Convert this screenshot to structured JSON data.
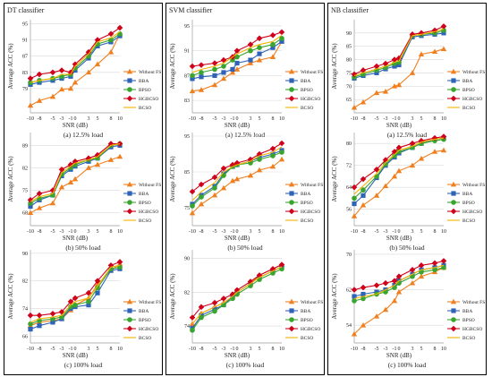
{
  "colors": {
    "border": "#000000",
    "grid": "#d9d9d9",
    "axis": "#9a9a9a"
  },
  "chart_data": {
    "type": "line",
    "x": [
      -10,
      -8,
      -5,
      -3,
      -1,
      0,
      3,
      5,
      8,
      10
    ],
    "x_labels": [
      "-10",
      "-8",
      "-5",
      "-3",
      "-1",
      "0",
      "3",
      "5",
      "8",
      "10"
    ],
    "xlabel": "SNR (dB)",
    "ylabel": "Average ACC (%)",
    "series_styles": [
      {
        "name": "Without FS",
        "color": "#f07f1f",
        "marker": "triangle"
      },
      {
        "name": "BBA",
        "color": "#2e63b7",
        "marker": "square"
      },
      {
        "name": "BPSO",
        "color": "#39a52e",
        "marker": "circle"
      },
      {
        "name": "HGBCSO",
        "color": "#d0021b",
        "marker": "diamond"
      },
      {
        "name": "BCSO",
        "color": "#f5b400",
        "marker": "none"
      }
    ],
    "columns": [
      {
        "title": "DT classifier",
        "panels": [
          {
            "caption": "(a) 12.5% load",
            "ylim": [
              73,
              96
            ],
            "yticks": [
              79,
              83,
              87,
              91,
              95
            ],
            "series": [
              {
                "name": "Without FS",
                "values": [
                  74.8,
                  76.0,
                  77.0,
                  78.8,
                  79.0,
                  80.5,
                  83.0,
                  85.0,
                  88.0,
                  92.5
                ]
              },
              {
                "name": "BBA",
                "values": [
                  80.0,
                  80.5,
                  81.0,
                  81.5,
                  82.0,
                  83.5,
                  86.5,
                  89.5,
                  90.5,
                  92.0
                ]
              },
              {
                "name": "BPSO",
                "values": [
                  80.5,
                  81.0,
                  81.5,
                  82.0,
                  82.5,
                  84.0,
                  87.0,
                  90.0,
                  91.0,
                  92.5
                ]
              },
              {
                "name": "HGBCSO",
                "values": [
                  81.5,
                  82.5,
                  83.0,
                  83.5,
                  83.0,
                  85.0,
                  88.0,
                  91.0,
                  92.5,
                  94.0
                ]
              },
              {
                "name": "BCSO",
                "values": [
                  80.5,
                  81.0,
                  81.5,
                  82.5,
                  82.5,
                  84.5,
                  87.5,
                  90.5,
                  91.5,
                  93.0
                ]
              }
            ]
          },
          {
            "caption": "(b) 50% load",
            "ylim": [
              64,
              93
            ],
            "yticks": [
              68,
              75,
              82,
              89
            ],
            "series": [
              {
                "name": "Without FS",
                "values": [
                  68.0,
                  69.5,
                  71.0,
                  76.0,
                  77.5,
                  78.5,
                  82.0,
                  83.0,
                  84.5,
                  85.5
                ]
              },
              {
                "name": "BBA",
                "values": [
                  70.0,
                  72.0,
                  73.5,
                  79.5,
                  81.5,
                  82.5,
                  84.0,
                  85.0,
                  88.5,
                  89.0
                ]
              },
              {
                "name": "BPSO",
                "values": [
                  71.0,
                  72.5,
                  73.5,
                  80.0,
                  82.0,
                  83.0,
                  84.5,
                  85.0,
                  89.0,
                  89.5
                ]
              },
              {
                "name": "HGBCSO",
                "values": [
                  72.0,
                  74.0,
                  75.0,
                  81.5,
                  83.0,
                  84.0,
                  85.0,
                  86.0,
                  89.5,
                  89.5
                ]
              },
              {
                "name": "BCSO",
                "values": [
                  71.5,
                  73.0,
                  74.0,
                  80.5,
                  82.5,
                  83.5,
                  84.5,
                  85.5,
                  89.0,
                  89.5
                ]
              }
            ]
          },
          {
            "caption": "(c) 100% load",
            "ylim": [
              64,
              91
            ],
            "yticks": [
              66,
              74,
              82,
              90
            ],
            "series": [
              {
                "name": "Without FS",
                "values": [
                  69.0,
                  70.0,
                  70.5,
                  71.0,
                  73.5,
                  75.0,
                  77.0,
                  81.0,
                  85.0,
                  87.0
                ]
              },
              {
                "name": "BBA",
                "values": [
                  68.0,
                  69.0,
                  70.0,
                  71.0,
                  74.0,
                  74.5,
                  75.0,
                  78.5,
                  85.0,
                  85.5
                ]
              },
              {
                "name": "BPSO",
                "values": [
                  69.5,
                  70.5,
                  71.0,
                  71.5,
                  74.5,
                  75.0,
                  76.0,
                  80.0,
                  85.5,
                  86.0
                ]
              },
              {
                "name": "HGBCSO",
                "values": [
                  72.0,
                  72.0,
                  72.5,
                  73.0,
                  76.0,
                  77.0,
                  78.5,
                  82.0,
                  86.5,
                  87.5
                ]
              },
              {
                "name": "BCSO",
                "values": [
                  70.0,
                  71.0,
                  71.5,
                  72.0,
                  75.0,
                  76.0,
                  77.0,
                  80.5,
                  86.0,
                  86.5
                ]
              }
            ]
          }
        ]
      },
      {
        "title": "SVM classifier",
        "panels": [
          {
            "caption": "(a) 12.5% load",
            "ylim": [
              81,
              96
            ],
            "yticks": [
              83,
              87,
              91,
              95
            ],
            "series": [
              {
                "name": "Without FS",
                "values": [
                  84.5,
                  84.7,
                  85.5,
                  86.5,
                  87.5,
                  88.0,
                  89.0,
                  89.5,
                  90.0,
                  92.5
                ]
              },
              {
                "name": "BBA",
                "values": [
                  86.5,
                  86.8,
                  87.0,
                  87.5,
                  88.0,
                  89.0,
                  89.5,
                  90.5,
                  91.5,
                  92.5
                ]
              },
              {
                "name": "BPSO",
                "values": [
                  87.0,
                  87.5,
                  88.0,
                  88.5,
                  89.5,
                  90.0,
                  91.0,
                  91.5,
                  92.0,
                  93.0
                ]
              },
              {
                "name": "HGBCSO",
                "values": [
                  88.5,
                  88.7,
                  89.0,
                  89.5,
                  90.0,
                  91.0,
                  92.0,
                  93.0,
                  93.5,
                  94.0
                ]
              },
              {
                "name": "BCSO",
                "values": [
                  87.5,
                  88.0,
                  88.5,
                  89.0,
                  90.0,
                  90.5,
                  91.5,
                  92.0,
                  92.5,
                  93.5
                ]
              }
            ]
          },
          {
            "caption": "(b) 50% load",
            "ylim": [
              70,
              96
            ],
            "yticks": [
              75,
              85,
              95
            ],
            "series": [
              {
                "name": "Without FS",
                "values": [
                  73.5,
                  76.0,
                  78.5,
                  80.5,
                  82.5,
                  83.0,
                  84.0,
                  85.5,
                  86.5,
                  88.5
                ]
              },
              {
                "name": "BBA",
                "values": [
                  76.0,
                  78.5,
                  81.0,
                  84.5,
                  86.5,
                  87.0,
                  88.0,
                  89.0,
                  90.0,
                  91.0
                ]
              },
              {
                "name": "BPSO",
                "values": [
                  75.5,
                  78.0,
                  80.5,
                  84.0,
                  86.5,
                  87.0,
                  87.5,
                  88.5,
                  89.5,
                  90.5
                ]
              },
              {
                "name": "HGBCSO",
                "values": [
                  79.5,
                  81.5,
                  83.5,
                  86.0,
                  87.0,
                  87.5,
                  88.5,
                  90.0,
                  91.5,
                  93.0
                ]
              },
              {
                "name": "BCSO",
                "values": [
                  77.0,
                  79.5,
                  82.0,
                  85.0,
                  86.5,
                  87.0,
                  88.0,
                  89.5,
                  90.5,
                  92.0
                ]
              }
            ]
          },
          {
            "caption": "(c) 100% load",
            "ylim": [
              70,
              92
            ],
            "yticks": [
              74,
              82,
              90
            ],
            "series": [
              {
                "name": "Without FS",
                "values": [
                  74.5,
                  77.0,
                  78.5,
                  79.5,
                  81.0,
                  82.0,
                  84.0,
                  86.0,
                  87.5,
                  88.5
                ]
              },
              {
                "name": "BBA",
                "values": [
                  73.5,
                  76.5,
                  78.0,
                  79.0,
                  81.0,
                  82.0,
                  84.0,
                  85.5,
                  87.0,
                  88.0
                ]
              },
              {
                "name": "BPSO",
                "values": [
                  73.0,
                  76.0,
                  77.5,
                  79.0,
                  80.5,
                  81.5,
                  83.5,
                  85.0,
                  86.5,
                  87.5
                ]
              },
              {
                "name": "HGBCSO",
                "values": [
                  76.0,
                  78.5,
                  79.5,
                  80.5,
                  81.5,
                  82.5,
                  84.5,
                  86.0,
                  87.5,
                  88.5
                ]
              },
              {
                "name": "BCSO",
                "values": [
                  74.5,
                  77.0,
                  78.5,
                  79.5,
                  81.0,
                  82.0,
                  84.0,
                  85.5,
                  87.0,
                  88.0
                ]
              }
            ]
          }
        ]
      },
      {
        "title": "NB classifier",
        "panels": [
          {
            "caption": "(a) 12.5% load",
            "ylim": [
              60,
              95
            ],
            "yticks": [
              65,
              70,
              75,
              80,
              85,
              90
            ],
            "series": [
              {
                "name": "Without FS",
                "values": [
                  62.0,
                  64.0,
                  67.5,
                  68.0,
                  70.0,
                  70.5,
                  75.0,
                  82.0,
                  83.0,
                  84.0
                ]
              },
              {
                "name": "BBA",
                "values": [
                  73.0,
                  74.0,
                  75.0,
                  76.5,
                  77.5,
                  78.0,
                  88.5,
                  89.0,
                  89.5,
                  90.0
                ]
              },
              {
                "name": "BPSO",
                "values": [
                  73.5,
                  74.5,
                  76.0,
                  77.0,
                  78.5,
                  79.0,
                  89.0,
                  89.5,
                  90.0,
                  91.0
                ]
              },
              {
                "name": "HGBCSO",
                "values": [
                  74.5,
                  76.0,
                  77.5,
                  78.5,
                  80.0,
                  80.5,
                  89.5,
                  90.0,
                  91.0,
                  92.5
                ]
              },
              {
                "name": "BCSO",
                "values": [
                  74.0,
                  75.0,
                  76.5,
                  77.5,
                  79.0,
                  79.5,
                  89.0,
                  89.5,
                  90.5,
                  91.5
                ]
              }
            ]
          },
          {
            "caption": "(b) 50% load",
            "ylim": [
              50,
              84
            ],
            "yticks": [
              56,
              64,
              72,
              80
            ],
            "series": [
              {
                "name": "Without FS",
                "values": [
                  53.5,
                  57.5,
                  61.0,
                  64.5,
                  68.0,
                  70.0,
                  72.0,
                  74.5,
                  77.0,
                  77.5
                ]
              },
              {
                "name": "BBA",
                "values": [
                  58.0,
                  61.0,
                  67.5,
                  72.0,
                  75.0,
                  76.5,
                  78.5,
                  80.0,
                  81.5,
                  82.0
                ]
              },
              {
                "name": "BPSO",
                "values": [
                  60.0,
                  63.0,
                  68.0,
                  72.5,
                  75.5,
                  77.0,
                  78.5,
                  80.0,
                  81.0,
                  81.5
                ]
              },
              {
                "name": "HGBCSO",
                "values": [
                  64.0,
                  67.0,
                  70.5,
                  74.0,
                  77.0,
                  78.5,
                  80.0,
                  81.0,
                  82.0,
                  82.5
                ]
              },
              {
                "name": "BCSO",
                "values": [
                  61.5,
                  64.5,
                  69.0,
                  73.0,
                  76.0,
                  77.5,
                  79.0,
                  80.5,
                  81.5,
                  82.0
                ]
              }
            ]
          },
          {
            "caption": "(c) 100% load",
            "ylim": [
              50,
              71
            ],
            "yticks": [
              54,
              62,
              70
            ],
            "series": [
              {
                "name": "Without FS",
                "values": [
                  52.0,
                  54.0,
                  56.0,
                  57.5,
                  59.5,
                  61.5,
                  63.5,
                  65.0,
                  66.0,
                  67.0
                ]
              },
              {
                "name": "BBA",
                "values": [
                  60.5,
                  61.0,
                  61.5,
                  62.0,
                  63.0,
                  64.0,
                  65.5,
                  66.5,
                  67.0,
                  67.5
                ]
              },
              {
                "name": "BPSO",
                "values": [
                  59.5,
                  60.0,
                  61.0,
                  61.5,
                  62.5,
                  63.5,
                  65.0,
                  66.0,
                  66.5,
                  67.0
                ]
              },
              {
                "name": "HGBCSO",
                "values": [
                  62.0,
                  62.5,
                  63.0,
                  63.5,
                  64.0,
                  65.0,
                  66.5,
                  67.5,
                  68.0,
                  68.5
                ]
              },
              {
                "name": "BCSO",
                "values": [
                  60.0,
                  60.5,
                  61.0,
                  62.0,
                  63.0,
                  64.0,
                  65.5,
                  66.5,
                  67.0,
                  67.5
                ]
              }
            ]
          }
        ]
      }
    ]
  }
}
